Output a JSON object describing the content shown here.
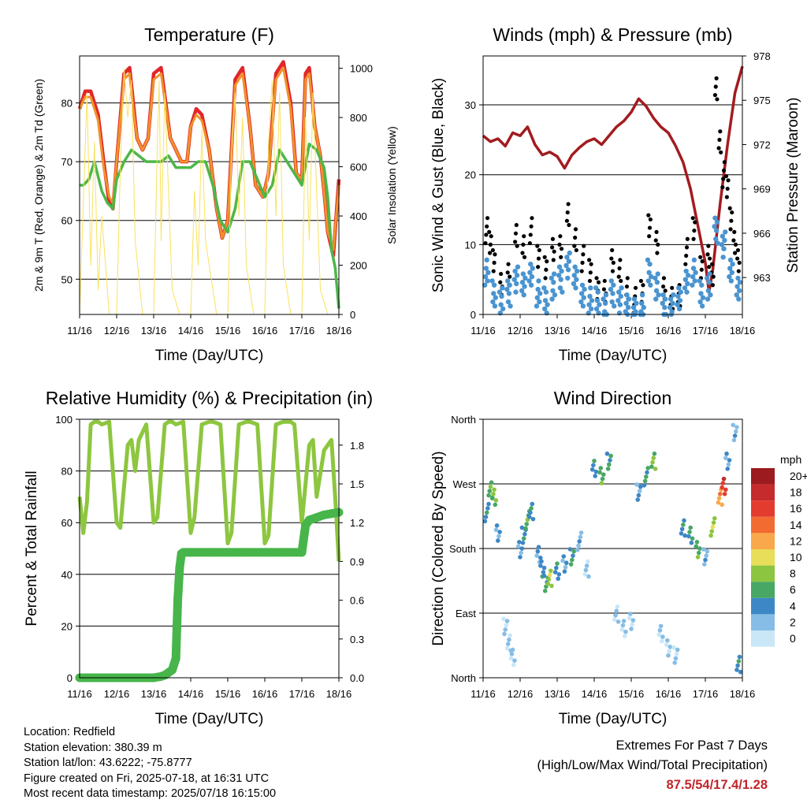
{
  "x_ticks": [
    "11/16",
    "12/16",
    "13/16",
    "14/16",
    "15/16",
    "16/16",
    "17/16",
    "18/16"
  ],
  "colors": {
    "temp2m": "#e0272a",
    "temp9m": "#f0932a",
    "dewpoint": "#4cb748",
    "solar": "#f9e25e",
    "gust": "#000000",
    "wind": "#4a94d0",
    "pressure": "#a31b1f",
    "rh": "#8dc63f",
    "precip": "#47b54a",
    "extremes": "#c0262b"
  },
  "chart_data": [
    {
      "type": "line",
      "title": "Temperature (F)",
      "xlabel": "Time (Day/UTC)",
      "ylabel": "2m & 9m T (Red, Orange) & 2m Td (Green)",
      "ylabel_right": "Solar Insolation (Yellow)",
      "ylim": [
        44,
        88
      ],
      "yticks": [
        50,
        60,
        70,
        80
      ],
      "ylim_right": [
        0,
        1050
      ],
      "yticks_right": [
        0,
        200,
        400,
        600,
        800,
        1000
      ],
      "grid": true,
      "series": [
        {
          "key": "temp2m",
          "x": [
            0,
            0.15,
            0.3,
            0.5,
            0.65,
            0.8,
            0.9,
            1.0,
            1.2,
            1.35,
            1.45,
            1.55,
            1.7,
            1.85,
            2.0,
            2.2,
            2.45,
            2.6,
            2.75,
            2.9,
            3.0,
            3.15,
            3.3,
            3.5,
            3.7,
            3.85,
            4.0,
            4.2,
            4.4,
            4.6,
            4.75,
            4.95,
            5.1,
            5.3,
            5.5,
            5.7,
            5.85,
            6.0,
            6.1,
            6.2,
            6.35,
            6.5,
            6.6,
            6.7,
            6.85,
            7.0
          ],
          "y": [
            79,
            82,
            82,
            78,
            70,
            63,
            62,
            70,
            85,
            86,
            80,
            74,
            72,
            74,
            85,
            86,
            74,
            72,
            70,
            70,
            76,
            79,
            78,
            72,
            62,
            57,
            60,
            84,
            86,
            76,
            66,
            64,
            68,
            85,
            87,
            80,
            68,
            67,
            85,
            86,
            76,
            71,
            65,
            58,
            54,
            67
          ]
        },
        {
          "key": "temp9m",
          "x": [
            0,
            0.15,
            0.3,
            0.5,
            0.65,
            0.8,
            0.9,
            1.0,
            1.2,
            1.35,
            1.45,
            1.55,
            1.7,
            1.85,
            2.0,
            2.2,
            2.45,
            2.6,
            2.75,
            2.9,
            3.0,
            3.15,
            3.3,
            3.5,
            3.7,
            3.85,
            4.0,
            4.2,
            4.4,
            4.6,
            4.75,
            4.95,
            5.1,
            5.3,
            5.5,
            5.7,
            5.85,
            6.0,
            6.1,
            6.2,
            6.35,
            6.5,
            6.6,
            6.7,
            6.85,
            7.0
          ],
          "y": [
            79,
            81,
            81,
            77,
            69,
            64,
            63,
            70,
            84,
            85,
            79,
            74,
            72,
            74,
            84,
            85,
            74,
            72,
            70,
            70,
            76,
            78,
            77,
            72,
            62,
            57,
            60,
            83,
            85,
            76,
            66,
            64,
            68,
            84,
            86,
            79,
            68,
            67,
            84,
            85,
            76,
            71,
            65,
            58,
            55,
            66
          ]
        },
        {
          "key": "dewpoint",
          "x": [
            0,
            0.1,
            0.25,
            0.4,
            0.6,
            0.75,
            0.9,
            1.0,
            1.2,
            1.4,
            1.6,
            1.8,
            2.0,
            2.2,
            2.4,
            2.6,
            2.8,
            3.0,
            3.2,
            3.4,
            3.6,
            3.8,
            4.0,
            4.2,
            4.4,
            4.6,
            4.8,
            5.0,
            5.2,
            5.4,
            5.6,
            5.8,
            6.0,
            6.2,
            6.4,
            6.6,
            6.7,
            6.8,
            6.9,
            7.0
          ],
          "y": [
            66,
            66,
            67,
            70,
            65,
            63,
            62,
            67,
            70,
            72,
            71,
            70,
            70,
            70,
            71,
            69,
            69,
            69,
            70,
            70,
            66,
            60,
            58,
            62,
            70,
            70,
            67,
            64,
            66,
            72,
            70,
            68,
            66,
            73,
            72,
            69,
            64,
            55,
            52,
            45
          ]
        },
        {
          "key": "solar",
          "x": [
            0,
            0.2,
            0.3,
            0.4,
            0.5,
            0.6,
            0.8,
            1.0,
            1.1,
            1.2,
            1.3,
            1.4,
            1.5,
            1.7,
            2.0,
            2.1,
            2.15,
            2.2,
            2.3,
            2.4,
            2.5,
            2.7,
            3.0,
            3.1,
            3.2,
            3.3,
            3.4,
            3.5,
            3.7,
            4.0,
            4.1,
            4.2,
            4.3,
            4.4,
            4.5,
            4.7,
            5.0,
            5.1,
            5.2,
            5.3,
            5.4,
            5.5,
            5.7,
            6.0,
            6.1,
            6.2,
            6.3,
            6.4,
            6.5,
            6.7,
            7.0
          ],
          "y": [
            0,
            900,
            200,
            700,
            100,
            400,
            0,
            0,
            600,
            1000,
            800,
            950,
            300,
            0,
            0,
            700,
            950,
            300,
            900,
            500,
            100,
            0,
            0,
            500,
            200,
            750,
            300,
            200,
            0,
            0,
            650,
            900,
            400,
            800,
            200,
            0,
            0,
            700,
            950,
            400,
            900,
            200,
            0,
            0,
            800,
            300,
            900,
            500,
            100,
            0,
            0
          ]
        }
      ]
    },
    {
      "type": "scatter",
      "title": "Winds (mph) & Pressure (mb)",
      "xlabel": "Time (Day/UTC)",
      "ylabel": "Sonic Wind & Gust (Blue, Black)",
      "ylabel_right": "Station Pressure (Maroon)",
      "ylim": [
        0,
        37
      ],
      "yticks": [
        0,
        10,
        20,
        30
      ],
      "ylim_right": [
        960.5,
        978
      ],
      "yticks_right": [
        963,
        966,
        969,
        972,
        975,
        978
      ],
      "grid": true,
      "series": [
        {
          "key": "pressure",
          "x": [
            0,
            0.2,
            0.4,
            0.6,
            0.8,
            1.0,
            1.2,
            1.4,
            1.6,
            1.8,
            2.0,
            2.2,
            2.4,
            2.6,
            2.8,
            3.0,
            3.2,
            3.4,
            3.6,
            3.8,
            4.0,
            4.2,
            4.4,
            4.6,
            4.8,
            5.0,
            5.2,
            5.4,
            5.6,
            5.8,
            6.0,
            6.1,
            6.2,
            6.4,
            6.6,
            6.8,
            7.0
          ],
          "y": [
            972.6,
            972.2,
            972.4,
            971.9,
            972.8,
            972.6,
            973.2,
            972.0,
            971.3,
            971.5,
            971.2,
            970.4,
            971.3,
            971.8,
            972.2,
            972.4,
            972.0,
            972.6,
            973.2,
            973.6,
            974.2,
            975.1,
            974.6,
            973.8,
            973.2,
            972.8,
            971.9,
            970.8,
            969.0,
            966.5,
            964.0,
            962.0,
            963.5,
            968.0,
            972.0,
            975.5,
            977.3
          ]
        },
        {
          "key": "gust",
          "x": [
            0.1,
            0.2,
            0.3,
            0.5,
            0.7,
            0.9,
            1.1,
            1.3,
            1.5,
            1.7,
            1.9,
            2.1,
            2.3,
            2.5,
            2.7,
            2.9,
            3.1,
            3.3,
            3.5,
            3.7,
            3.9,
            4.1,
            4.3,
            4.5,
            4.7,
            4.9,
            5.1,
            5.3,
            5.5,
            5.7,
            5.9,
            6.1,
            6.2,
            6.3,
            6.4,
            6.5,
            6.6,
            6.7,
            6.8,
            6.9
          ],
          "y": [
            12,
            10,
            8,
            4,
            6,
            11,
            10,
            12,
            8,
            7,
            9,
            10,
            14,
            11,
            8,
            6,
            4,
            3,
            8,
            6,
            4,
            2,
            3,
            13,
            10,
            4,
            2,
            3,
            9,
            12,
            7,
            8,
            6,
            32,
            25,
            20,
            18,
            14,
            10,
            8
          ]
        },
        {
          "key": "wind",
          "x": [
            0.1,
            0.3,
            0.5,
            0.7,
            0.9,
            1.1,
            1.3,
            1.5,
            1.7,
            1.9,
            2.1,
            2.3,
            2.5,
            2.7,
            2.9,
            3.1,
            3.3,
            3.5,
            3.7,
            3.9,
            4.1,
            4.3,
            4.5,
            4.7,
            4.9,
            5.1,
            5.3,
            5.5,
            5.7,
            5.9,
            6.1,
            6.3,
            6.5,
            6.7,
            6.9
          ],
          "y": [
            6,
            3,
            2,
            3,
            5,
            4,
            6,
            3,
            2,
            4,
            5,
            7,
            5,
            3,
            2,
            2,
            1,
            3,
            2,
            1,
            1,
            1,
            6,
            4,
            1,
            1,
            2,
            5,
            6,
            3,
            4,
            12,
            10,
            6,
            4
          ]
        }
      ]
    },
    {
      "type": "line",
      "title": "Relative Humidity (%) & Precipitation (in)",
      "xlabel": "Time (Day/UTC)",
      "ylabel": "Percent & Total Rainfall",
      "ylim": [
        0,
        100
      ],
      "yticks": [
        0,
        20,
        40,
        60,
        80,
        100
      ],
      "ylim_right": [
        0,
        2.0
      ],
      "yticks_right": [
        0.0,
        0.3,
        0.6,
        0.9,
        1.2,
        1.5,
        1.8
      ],
      "yticks_right_labels": [
        "0.0",
        "0.3",
        "0.6",
        "0.9",
        "1.2",
        "1.5",
        "1.8"
      ],
      "grid": true,
      "series": [
        {
          "key": "rh",
          "x": [
            0,
            0.1,
            0.2,
            0.3,
            0.4,
            0.5,
            0.6,
            0.8,
            1.0,
            1.1,
            1.3,
            1.4,
            1.5,
            1.6,
            1.8,
            2.0,
            2.1,
            2.3,
            2.4,
            2.5,
            2.6,
            2.8,
            3.0,
            3.1,
            3.3,
            3.5,
            3.6,
            3.8,
            4.0,
            4.1,
            4.3,
            4.5,
            4.6,
            4.8,
            5.0,
            5.1,
            5.3,
            5.5,
            5.7,
            5.8,
            6.0,
            6.2,
            6.3,
            6.4,
            6.6,
            6.8,
            6.9,
            7.0
          ],
          "y": [
            70,
            56,
            68,
            98,
            99,
            99,
            98,
            99,
            60,
            58,
            90,
            92,
            80,
            92,
            98,
            60,
            62,
            98,
            99,
            99,
            98,
            99,
            56,
            62,
            98,
            99,
            99,
            98,
            52,
            56,
            98,
            99,
            99,
            98,
            52,
            55,
            98,
            99,
            99,
            98,
            60,
            90,
            92,
            70,
            88,
            92,
            70,
            45
          ]
        },
        {
          "key": "precip",
          "x": [
            0,
            0.5,
            1.0,
            1.5,
            2.0,
            2.2,
            2.3,
            2.4,
            2.5,
            2.6,
            2.65,
            2.7,
            2.75,
            2.8,
            3.0,
            3.5,
            4.0,
            4.5,
            5.0,
            5.5,
            6.0,
            6.1,
            6.2,
            6.4,
            6.6,
            6.8,
            7.0
          ],
          "y": [
            0,
            0,
            0,
            0,
            0,
            0.01,
            0.02,
            0.04,
            0.06,
            0.15,
            0.6,
            0.85,
            0.96,
            0.97,
            0.97,
            0.97,
            0.97,
            0.97,
            0.97,
            0.97,
            0.97,
            1.18,
            1.22,
            1.24,
            1.26,
            1.27,
            1.28
          ]
        }
      ]
    },
    {
      "type": "scatter",
      "title": "Wind Direction",
      "xlabel": "Time (Day/UTC)",
      "ylabel": "Direction (Colored By Speed)",
      "ylim": [
        0,
        360
      ],
      "yticks": [
        0,
        90,
        180,
        270,
        360
      ],
      "ytick_labels": [
        "North",
        "East",
        "South",
        "West",
        "North"
      ],
      "grid": true,
      "colorbar": {
        "title": "mph",
        "labels": [
          "20+",
          "18",
          "16",
          "14",
          "12",
          "10",
          "8",
          "6",
          "4",
          "2",
          "0"
        ],
        "colors": [
          "#9b1b1e",
          "#c52a2c",
          "#e33b2e",
          "#f26b31",
          "#f9a84b",
          "#e8de5a",
          "#8cc540",
          "#48a764",
          "#3d87c6",
          "#86bde6",
          "#c9e7f7"
        ]
      },
      "series": [
        {
          "key": "direction",
          "x": [
            0.1,
            0.2,
            0.3,
            0.4,
            0.6,
            0.7,
            0.8,
            1.0,
            1.1,
            1.2,
            1.3,
            1.5,
            1.6,
            1.7,
            1.8,
            2.0,
            2.2,
            2.4,
            2.6,
            2.8,
            3.0,
            3.2,
            3.4,
            3.6,
            3.8,
            4.0,
            4.2,
            4.4,
            4.6,
            4.8,
            5.0,
            5.2,
            5.4,
            5.6,
            5.8,
            6.0,
            6.2,
            6.4,
            6.5,
            6.6,
            6.8,
            6.9
          ],
          "y": [
            230,
            260,
            250,
            200,
            70,
            50,
            30,
            180,
            200,
            220,
            230,
            170,
            150,
            130,
            140,
            150,
            160,
            170,
            190,
            150,
            290,
            280,
            300,
            90,
            70,
            80,
            260,
            280,
            300,
            60,
            40,
            30,
            210,
            200,
            180,
            170,
            210,
            250,
            265,
            300,
            340,
            20
          ],
          "speed": [
            4,
            6,
            7,
            3,
            1,
            1,
            1,
            3,
            4,
            6,
            4,
            3,
            4,
            5,
            8,
            4,
            3,
            5,
            2,
            1,
            4,
            6,
            5,
            1,
            1,
            1,
            3,
            5,
            7,
            1,
            1,
            1,
            4,
            5,
            6,
            2,
            8,
            12,
            16,
            3,
            2,
            4
          ]
        }
      ]
    }
  ],
  "info": {
    "location": "Location: Redfield",
    "elevation": "Station elevation: 380.39 m",
    "latlon": "Station lat/lon: 43.6222; -75.8777",
    "created": "Figure created on Fri, 2025-07-18, at 16:31 UTC",
    "latest": "Most recent data timestamp: 2025/07/18 16:15:00"
  },
  "extremes": {
    "title": "Extremes For Past 7 Days",
    "subtitle": "(High/Low/Max Wind/Total Precipitation)",
    "values": "87.5/54/17.4/1.28"
  }
}
